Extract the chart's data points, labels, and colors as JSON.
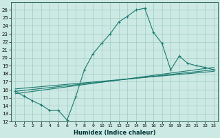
{
  "xlabel": "Humidex (Indice chaleur)",
  "ylabel": "",
  "xlim": [
    -0.5,
    23.5
  ],
  "ylim": [
    12,
    27
  ],
  "xticks": [
    0,
    1,
    2,
    3,
    4,
    5,
    6,
    7,
    8,
    9,
    10,
    11,
    12,
    13,
    14,
    15,
    16,
    17,
    18,
    19,
    20,
    21,
    22,
    23
  ],
  "yticks": [
    12,
    13,
    14,
    15,
    16,
    17,
    18,
    19,
    20,
    21,
    22,
    23,
    24,
    25,
    26
  ],
  "bg_color": "#cce9e4",
  "grid_color": "#a0ccc5",
  "line_color": "#1a7a6e",
  "line1_x": [
    0,
    1,
    2,
    3,
    4,
    5,
    6,
    7,
    8,
    9,
    10,
    11,
    12,
    13,
    14,
    15,
    16,
    17,
    18,
    19,
    20,
    21,
    22,
    23
  ],
  "line1_y": [
    15.8,
    15.2,
    14.6,
    14.1,
    13.4,
    13.4,
    12.2,
    15.1,
    18.5,
    20.5,
    21.8,
    23.0,
    24.5,
    25.2,
    26.0,
    26.2,
    23.2,
    21.8,
    18.5,
    20.2,
    19.3,
    19.0,
    18.8,
    18.5
  ],
  "line2_x": [
    0,
    23
  ],
  "line2_y": [
    15.8,
    18.5
  ],
  "line3_x": [
    0,
    23
  ],
  "line3_y": [
    16.1,
    18.3
  ],
  "line4_x": [
    0,
    23
  ],
  "line4_y": [
    15.5,
    18.8
  ]
}
